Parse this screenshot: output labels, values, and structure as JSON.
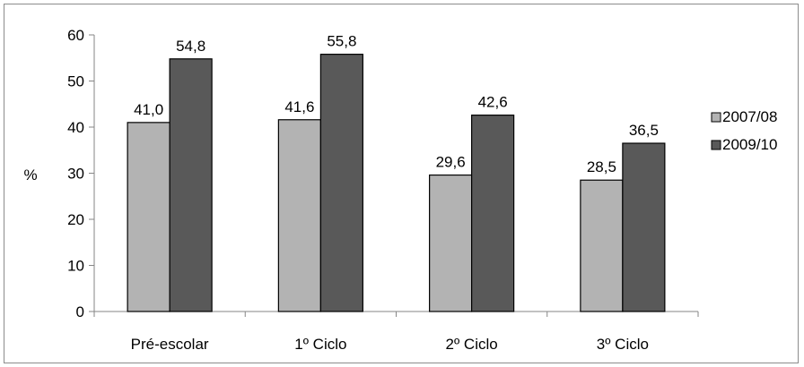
{
  "chart_data": {
    "type": "bar",
    "ylabel": "%",
    "xlabel": "",
    "ylim": [
      0,
      60
    ],
    "yticks": [
      0,
      10,
      20,
      30,
      40,
      50,
      60
    ],
    "grid": false,
    "legend_position": "right",
    "categories": [
      "Pré-escolar",
      "1º Ciclo",
      "2º Ciclo",
      "3º Ciclo"
    ],
    "series": [
      {
        "name": "2007/08",
        "values": [
          41.0,
          41.6,
          29.6,
          28.5
        ],
        "labels": [
          "41,0",
          "41,6",
          "29,6",
          "28,5"
        ],
        "color": "#b3b3b3"
      },
      {
        "name": "2009/10",
        "values": [
          54.8,
          55.8,
          42.6,
          36.5
        ],
        "labels": [
          "54,8",
          "55,8",
          "42,6",
          "36,5"
        ],
        "color": "#595959"
      }
    ]
  }
}
